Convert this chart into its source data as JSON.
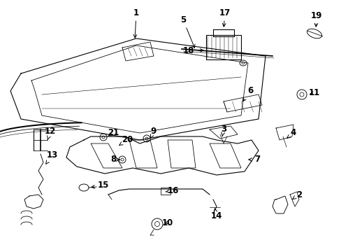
{
  "background_color": "#ffffff",
  "figsize": [
    4.89,
    3.6
  ],
  "dpi": 100,
  "label_fontsize": 8.5,
  "label_fontsize_small": 7.5
}
